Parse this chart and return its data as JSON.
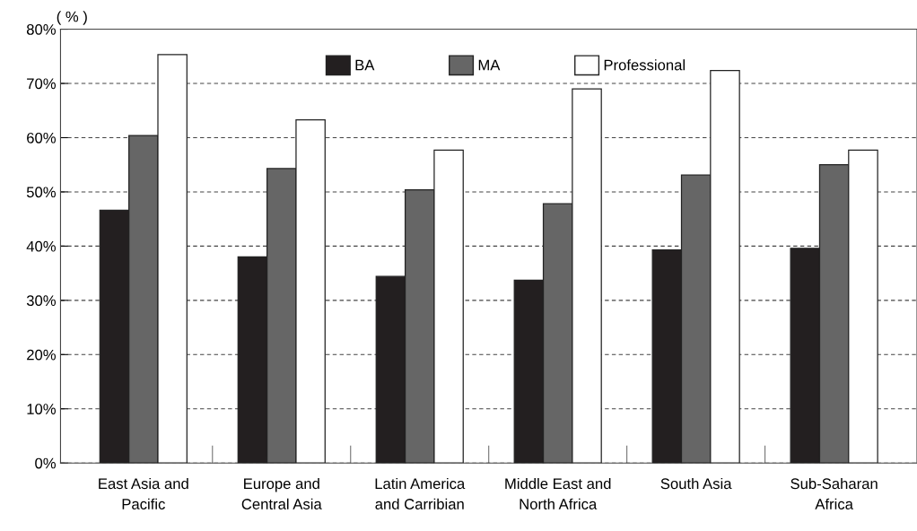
{
  "chart_data": {
    "type": "bar",
    "ylabel": "( % )",
    "categories": [
      "East Asia and\nPacific",
      "Europe and\nCentral Asia",
      "Latin America\nand Carribian",
      "Middle East and\nNorth Africa",
      "South Asia",
      "Sub-Saharan\nAfrica"
    ],
    "series": [
      {
        "name": "BA",
        "color": "#231f20",
        "values": [
          46.6,
          38.0,
          34.4,
          33.7,
          39.3,
          39.6
        ]
      },
      {
        "name": "MA",
        "color": "#666666",
        "values": [
          60.4,
          54.3,
          50.4,
          47.8,
          53.1,
          55.0
        ]
      },
      {
        "name": "Professional",
        "color": "#ffffff",
        "values": [
          75.3,
          63.3,
          57.7,
          69.0,
          72.4,
          57.7
        ]
      }
    ],
    "ylim": [
      0,
      80
    ],
    "yticks": [
      {
        "value": 0,
        "label": "0%"
      },
      {
        "value": 10,
        "label": "10%"
      },
      {
        "value": 20,
        "label": "20%"
      },
      {
        "value": 30,
        "label": "30%"
      },
      {
        "value": 40,
        "label": "40%"
      },
      {
        "value": 50,
        "label": "50%"
      },
      {
        "value": 60,
        "label": "60%"
      },
      {
        "value": 70,
        "label": "70%"
      },
      {
        "value": 80,
        "label": "80%"
      }
    ],
    "grid": "y",
    "legend": "top"
  }
}
